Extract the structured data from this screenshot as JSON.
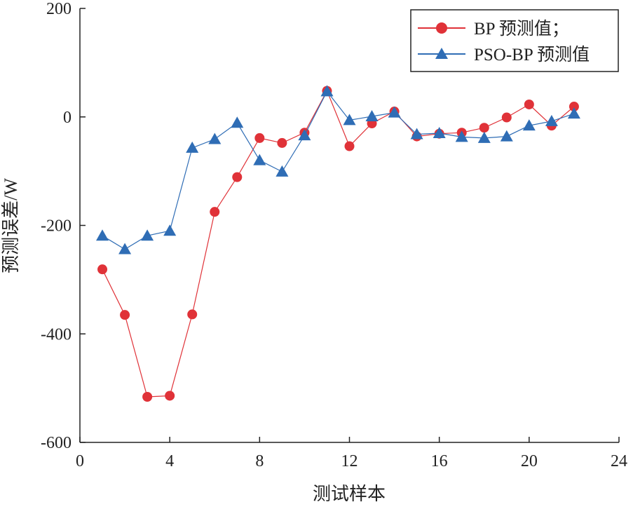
{
  "chart_data": {
    "type": "line",
    "title": "",
    "xlabel": "测试样本",
    "ylabel": "预测误差/W",
    "xlim": [
      0,
      24
    ],
    "ylim": [
      -600,
      200
    ],
    "xticks": [
      0,
      4,
      8,
      12,
      16,
      20,
      24
    ],
    "yticks": [
      200,
      0,
      -200,
      -400,
      -600
    ],
    "xtick_labels": [
      "0",
      "4",
      "8",
      "12",
      "16",
      "20",
      "24"
    ],
    "ytick_labels": [
      "200",
      "0",
      "-200",
      "-400",
      "-600"
    ],
    "grid": false,
    "legend_position": "top-right",
    "x": [
      1,
      2,
      3,
      4,
      5,
      6,
      7,
      8,
      9,
      10,
      11,
      12,
      13,
      14,
      15,
      16,
      17,
      18,
      19,
      20,
      21,
      22
    ],
    "series": [
      {
        "name": "BP 预测值；",
        "color": "#e03238",
        "marker": "circle",
        "values": [
          -281,
          -365,
          -516,
          -514,
          -364,
          -175,
          -111,
          -39,
          -48,
          -29,
          48,
          -54,
          -12,
          10,
          -36,
          -31,
          -29,
          -20,
          -1,
          23,
          -16,
          19
        ]
      },
      {
        "name": "PSO-BP 预测值",
        "color": "#2f6db5",
        "marker": "triangle",
        "values": [
          -219,
          -244,
          -219,
          -210,
          -57,
          -41,
          -11,
          -80,
          -101,
          -34,
          47,
          -6,
          1,
          8,
          -32,
          -30,
          -37,
          -39,
          -36,
          -16,
          -8,
          6
        ]
      }
    ]
  }
}
